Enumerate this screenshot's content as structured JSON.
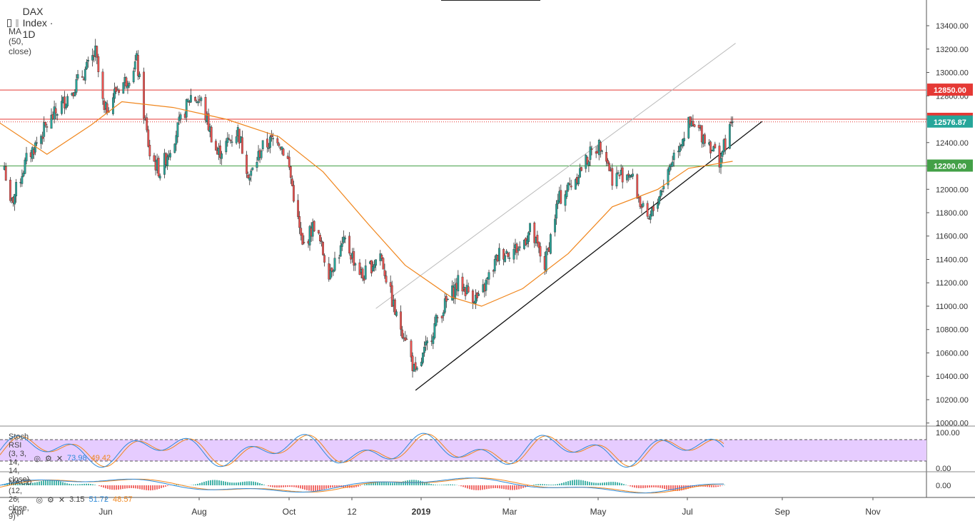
{
  "header": {
    "symbol": "DAX Index · 1D",
    "ma_label": "MA (50, close)"
  },
  "indicators": {
    "stoch_label": "Stoch RSI (3, 3, 14, 14, close)",
    "stoch_k": "73.98",
    "stoch_d": "49.42",
    "macd_label": "MACD (12, 26, close, 9)",
    "macd_hist": "3.15",
    "macd_line": "51.72",
    "macd_signal": "48.57"
  },
  "colors": {
    "up": "#26a69a",
    "down": "#ef5350",
    "ma": "#f0861d",
    "resistance": "#e53935",
    "support": "#43a047",
    "rsi_band": "#e6ccff",
    "price_badge": "#26a69a"
  },
  "chart_data": {
    "type": "candlestick",
    "title": "DAX Index · 1D",
    "y_ticks": [
      13400,
      13200,
      13000,
      12800,
      12600,
      12400,
      12200,
      12000,
      11800,
      11600,
      11400,
      11200,
      11000,
      10800,
      10600,
      10400,
      10200,
      10000
    ],
    "ylim": [
      9980,
      13620
    ],
    "x_ticks": [
      "Apr",
      "Jun",
      "Aug",
      "Oct",
      "12",
      "2019",
      "Mar",
      "May",
      "Jul",
      "Sep",
      "Nov"
    ],
    "horizontal_levels": [
      {
        "value": 12850,
        "label": "12850.00",
        "color": "#e53935"
      },
      {
        "value": 12600,
        "label": "12600.00",
        "color": "#e53935"
      },
      {
        "value": 12200,
        "label": "12200.00",
        "color": "#43a047"
      }
    ],
    "last_price": {
      "value": 12576.87,
      "label": "12576.87"
    },
    "trendlines": [
      {
        "name": "support",
        "from": {
          "date": "2018-12-27",
          "value": 10280
        },
        "to": {
          "date": "2019-08-20",
          "value": 12580
        }
      },
      {
        "name": "channel-top",
        "from": {
          "date": "2018-11-30",
          "value": 10980
        },
        "to": {
          "date": "2019-08-02",
          "value": 13250
        }
      }
    ],
    "price_path": [
      [
        "2018-03-22",
        12200
      ],
      [
        "2018-03-26",
        11850
      ],
      [
        "2018-04-06",
        12250
      ],
      [
        "2018-04-20",
        12550
      ],
      [
        "2018-05-07",
        12850
      ],
      [
        "2018-05-18",
        13050
      ],
      [
        "2018-05-23",
        13170
      ],
      [
        "2018-05-29",
        12650
      ],
      [
        "2018-06-06",
        12850
      ],
      [
        "2018-06-14",
        12950
      ],
      [
        "2018-06-20",
        13100
      ],
      [
        "2018-06-29",
        12300
      ],
      [
        "2018-07-06",
        12150
      ],
      [
        "2018-07-19",
        12550
      ],
      [
        "2018-07-27",
        12800
      ],
      [
        "2018-08-03",
        12750
      ],
      [
        "2018-08-14",
        12300
      ],
      [
        "2018-08-21",
        12400
      ],
      [
        "2018-08-28",
        12500
      ],
      [
        "2018-09-05",
        12100
      ],
      [
        "2018-09-13",
        12350
      ],
      [
        "2018-09-24",
        12450
      ],
      [
        "2018-10-01",
        12250
      ],
      [
        "2018-10-11",
        11500
      ],
      [
        "2018-10-19",
        11700
      ],
      [
        "2018-10-29",
        11300
      ],
      [
        "2018-11-09",
        11550
      ],
      [
        "2018-11-21",
        11250
      ],
      [
        "2018-12-03",
        11450
      ],
      [
        "2018-12-14",
        10900
      ],
      [
        "2018-12-20",
        10750
      ],
      [
        "2018-12-27",
        10400
      ],
      [
        "2019-01-11",
        10900
      ],
      [
        "2019-01-25",
        11200
      ],
      [
        "2019-02-08",
        11050
      ],
      [
        "2019-02-22",
        11450
      ],
      [
        "2019-03-08",
        11500
      ],
      [
        "2019-03-15",
        11650
      ],
      [
        "2019-03-25",
        11350
      ],
      [
        "2019-04-03",
        11900
      ],
      [
        "2019-04-15",
        12100
      ],
      [
        "2019-04-25",
        12300
      ],
      [
        "2019-05-03",
        12400
      ],
      [
        "2019-05-10",
        12100
      ],
      [
        "2019-05-22",
        12150
      ],
      [
        "2019-06-03",
        11700
      ],
      [
        "2019-06-14",
        12050
      ],
      [
        "2019-06-21",
        12300
      ],
      [
        "2019-07-01",
        12550
      ],
      [
        "2019-07-08",
        12500
      ],
      [
        "2019-07-15",
        12400
      ],
      [
        "2019-07-22",
        12250
      ],
      [
        "2019-07-31",
        12576
      ]
    ],
    "ma_path": [
      [
        "2018-03-15",
        12600
      ],
      [
        "2018-04-20",
        12300
      ],
      [
        "2018-05-20",
        12550
      ],
      [
        "2018-06-10",
        12750
      ],
      [
        "2018-07-15",
        12700
      ],
      [
        "2018-08-20",
        12600
      ],
      [
        "2018-09-25",
        12450
      ],
      [
        "2018-10-25",
        12150
      ],
      [
        "2018-11-25",
        11700
      ],
      [
        "2018-12-20",
        11350
      ],
      [
        "2019-01-20",
        11080
      ],
      [
        "2019-02-10",
        11000
      ],
      [
        "2019-03-10",
        11150
      ],
      [
        "2019-04-10",
        11450
      ],
      [
        "2019-05-10",
        11850
      ],
      [
        "2019-06-10",
        12000
      ],
      [
        "2019-07-01",
        12180
      ],
      [
        "2019-07-31",
        12240
      ]
    ],
    "stoch_rsi": {
      "levels": [
        80,
        20
      ],
      "band": [
        20,
        80
      ],
      "ticks": [
        100,
        0
      ],
      "k_last": 73.98,
      "d_last": 49.42
    },
    "macd": {
      "ticks": [
        0
      ],
      "hist_last": 3.15,
      "macd_last": 51.72,
      "signal_last": 48.57
    }
  },
  "y_tick_labels": [
    "13400.00",
    "13200.00",
    "13000.00",
    "12800.00",
    "12600.00",
    "12400.00",
    "12200.00",
    "12000.00",
    "11800.00",
    "11600.00",
    "11400.00",
    "11200.00",
    "11000.00",
    "10800.00",
    "10600.00",
    "10400.00",
    "10200.00",
    "10000.00"
  ],
  "rsi_tick_labels": [
    "100.00",
    "0.00"
  ],
  "macd_tick_labels": [
    "0.00"
  ]
}
